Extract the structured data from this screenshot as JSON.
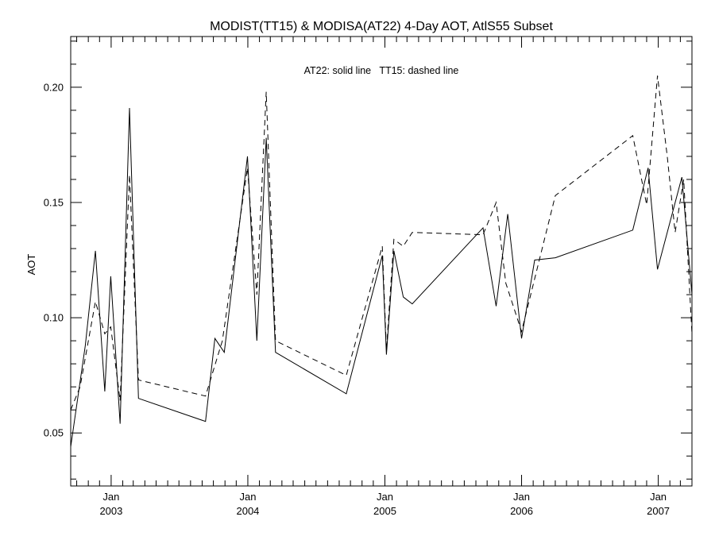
{
  "chart_data": {
    "type": "line",
    "title": "MODIST(TT15) & MODISA(AT22) 4-Day AOT, AtlS55 Subset",
    "annotation": "AT22: solid line   TT15: dashed line",
    "ylabel": "AOT",
    "xlabel": "",
    "xlim": [
      "2002-09-15",
      "2007-04-01"
    ],
    "ylim": [
      0.027,
      0.222
    ],
    "y_ticks": [
      0.05,
      0.1,
      0.15,
      0.2
    ],
    "y_tick_labels": [
      "0.05",
      "0.10",
      "0.15",
      "0.20"
    ],
    "x_ticks": [
      {
        "date": "2003-01-01",
        "month": "Jan",
        "year": "2003"
      },
      {
        "date": "2004-01-01",
        "month": "Jan",
        "year": "2004"
      },
      {
        "date": "2005-01-01",
        "month": "Jan",
        "year": "2005"
      },
      {
        "date": "2006-01-01",
        "month": "Jan",
        "year": "2006"
      },
      {
        "date": "2007-01-01",
        "month": "Jan",
        "year": "2007"
      }
    ],
    "grid": false,
    "series": [
      {
        "name": "AT22",
        "style": "solid",
        "color": "#000000",
        "points": [
          [
            "2002-09-15",
            0.044
          ],
          [
            "2002-10-24",
            0.088
          ],
          [
            "2002-11-20",
            0.129
          ],
          [
            "2002-12-15",
            0.068
          ],
          [
            "2002-12-31",
            0.118
          ],
          [
            "2003-01-25",
            0.054
          ],
          [
            "2003-02-19",
            0.191
          ],
          [
            "2003-03-15",
            0.065
          ],
          [
            "2003-09-10",
            0.055
          ],
          [
            "2003-10-05",
            0.091
          ],
          [
            "2003-10-30",
            0.085
          ],
          [
            "2003-12-31",
            0.17
          ],
          [
            "2004-01-25",
            0.09
          ],
          [
            "2004-02-19",
            0.178
          ],
          [
            "2004-03-15",
            0.085
          ],
          [
            "2004-09-20",
            0.067
          ],
          [
            "2004-12-25",
            0.127
          ],
          [
            "2005-01-05",
            0.084
          ],
          [
            "2005-01-25",
            0.129
          ],
          [
            "2005-02-19",
            0.109
          ],
          [
            "2005-03-15",
            0.106
          ],
          [
            "2005-09-20",
            0.139
          ],
          [
            "2005-10-25",
            0.105
          ],
          [
            "2005-11-25",
            0.145
          ],
          [
            "2006-01-01",
            0.091
          ],
          [
            "2006-02-05",
            0.125
          ],
          [
            "2006-04-01",
            0.126
          ],
          [
            "2006-10-25",
            0.138
          ],
          [
            "2006-12-05",
            0.165
          ],
          [
            "2006-12-30",
            0.121
          ],
          [
            "2007-03-05",
            0.161
          ],
          [
            "2007-04-01",
            0.11
          ]
        ]
      },
      {
        "name": "TT15",
        "style": "dashed",
        "color": "#000000",
        "points": [
          [
            "2002-09-15",
            0.06
          ],
          [
            "2002-10-10",
            0.07
          ],
          [
            "2002-11-20",
            0.107
          ],
          [
            "2002-12-15",
            0.093
          ],
          [
            "2002-12-31",
            0.096
          ],
          [
            "2003-01-25",
            0.064
          ],
          [
            "2003-02-19",
            0.162
          ],
          [
            "2003-03-15",
            0.073
          ],
          [
            "2003-09-10",
            0.066
          ],
          [
            "2003-10-25",
            0.09
          ],
          [
            "2003-12-31",
            0.165
          ],
          [
            "2004-01-25",
            0.11
          ],
          [
            "2004-02-19",
            0.198
          ],
          [
            "2004-03-15",
            0.09
          ],
          [
            "2004-09-20",
            0.075
          ],
          [
            "2004-12-25",
            0.131
          ],
          [
            "2005-01-05",
            0.086
          ],
          [
            "2005-01-25",
            0.134
          ],
          [
            "2005-02-19",
            0.131
          ],
          [
            "2005-03-15",
            0.137
          ],
          [
            "2005-09-20",
            0.136
          ],
          [
            "2005-10-25",
            0.15
          ],
          [
            "2005-11-20",
            0.115
          ],
          [
            "2006-01-01",
            0.094
          ],
          [
            "2006-04-01",
            0.153
          ],
          [
            "2006-10-25",
            0.179
          ],
          [
            "2006-12-01",
            0.149
          ],
          [
            "2006-12-30",
            0.205
          ],
          [
            "2007-01-25",
            0.17
          ],
          [
            "2007-02-15",
            0.137
          ],
          [
            "2007-03-10",
            0.16
          ],
          [
            "2007-04-01",
            0.093
          ]
        ]
      }
    ]
  }
}
